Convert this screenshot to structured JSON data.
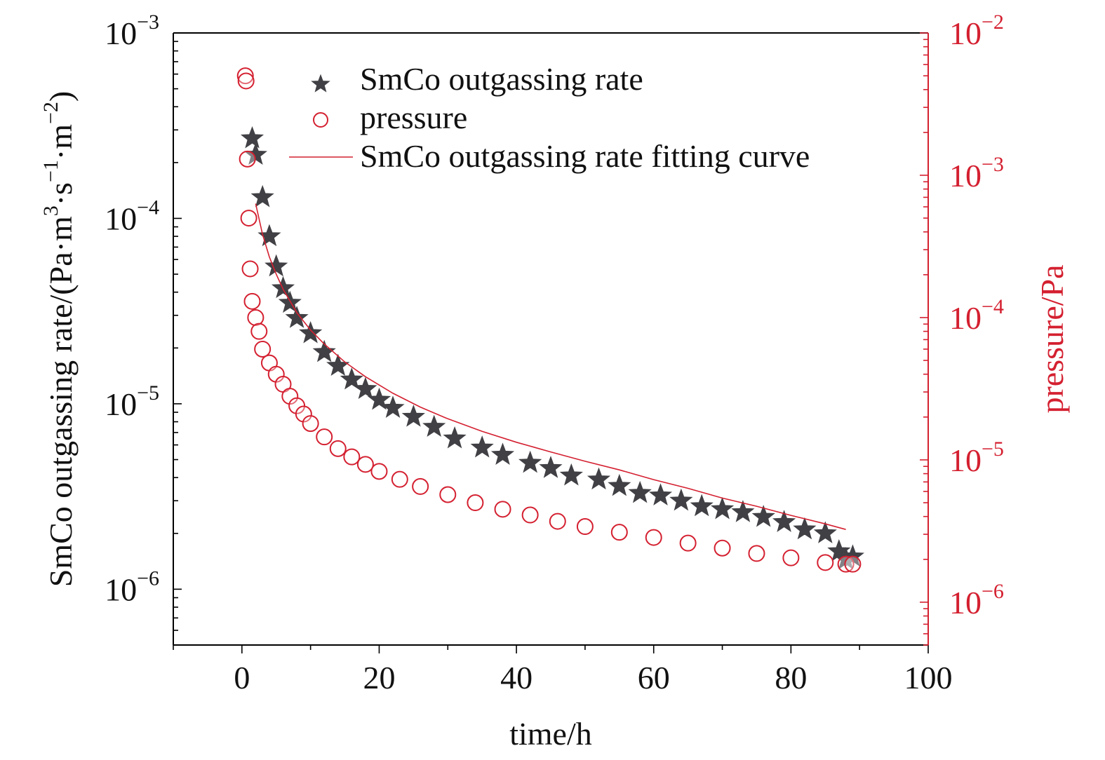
{
  "chart_data": {
    "type": "scatter",
    "xlabel": "time/h",
    "ylabel_left_parts": [
      "SmCo outgassing rate/(Pa·m",
      "3",
      "·s",
      "−1",
      "·m",
      "−2",
      ")"
    ],
    "ylabel_right": "pressure/Pa",
    "x": {
      "lim": [
        -10,
        100
      ],
      "ticks": [
        0,
        20,
        40,
        60,
        80,
        100
      ]
    },
    "y_left": {
      "scale": "log",
      "lim": [
        5e-07,
        0.001
      ],
      "ticks": [
        1e-06,
        1e-05,
        0.0001,
        0.001
      ],
      "tick_labels": [
        "10",
        "10",
        "10",
        "10"
      ],
      "tick_exponents": [
        "−6",
        "−5",
        "−4",
        "−3"
      ]
    },
    "y_right": {
      "scale": "log",
      "lim": [
        5e-07,
        0.01
      ],
      "ticks": [
        1e-06,
        1e-05,
        0.0001,
        0.001,
        0.01
      ],
      "tick_labels": [
        "10",
        "10",
        "10",
        "10",
        "10"
      ],
      "tick_exponents": [
        "−6",
        "−5",
        "−4",
        "−3",
        "−2"
      ]
    },
    "colors": {
      "rate": "#404045",
      "pressure": "#d42030",
      "axis_right": "#d42030",
      "fit": "#d42030",
      "axis": "#000000"
    },
    "legend": {
      "placement": "top",
      "entries": [
        "SmCo outgassing rate",
        "pressure",
        "SmCo outgassing rate fitting curve"
      ]
    },
    "series": [
      {
        "name": "SmCo outgassing rate",
        "axis": "left",
        "marker": "star",
        "x": [
          1.5,
          2,
          3,
          4,
          5,
          6,
          7,
          8,
          10,
          12,
          14,
          16,
          18,
          20,
          22,
          25,
          28,
          31,
          35,
          38,
          42,
          45,
          48,
          52,
          55,
          58,
          61,
          64,
          67,
          70,
          73,
          76,
          79,
          82,
          85,
          87,
          88,
          89
        ],
        "y": [
          0.00027,
          0.00022,
          0.00013,
          8e-05,
          5.5e-05,
          4.2e-05,
          3.5e-05,
          2.9e-05,
          2.4e-05,
          1.9e-05,
          1.6e-05,
          1.35e-05,
          1.2e-05,
          1.05e-05,
          9.5e-06,
          8.5e-06,
          7.5e-06,
          6.5e-06,
          5.8e-06,
          5.3e-06,
          4.8e-06,
          4.5e-06,
          4.1e-06,
          3.9e-06,
          3.6e-06,
          3.3e-06,
          3.2e-06,
          3e-06,
          2.8e-06,
          2.7e-06,
          2.6e-06,
          2.45e-06,
          2.3e-06,
          2.1e-06,
          2e-06,
          1.6e-06,
          1.45e-06,
          1.5e-06
        ]
      },
      {
        "name": "pressure",
        "axis": "right",
        "marker": "circle",
        "x": [
          0.5,
          0.6,
          0.8,
          1,
          1.2,
          1.5,
          2,
          2.5,
          3,
          4,
          5,
          6,
          7,
          8,
          9,
          10,
          12,
          14,
          16,
          18,
          20,
          23,
          26,
          30,
          34,
          38,
          42,
          46,
          50,
          55,
          60,
          65,
          70,
          75,
          80,
          85,
          88,
          89
        ],
        "y": [
          0.005,
          0.0046,
          0.0013,
          0.0005,
          0.00022,
          0.00013,
          0.0001,
          8e-05,
          6e-05,
          4.8e-05,
          4e-05,
          3.4e-05,
          2.8e-05,
          2.4e-05,
          2.1e-05,
          1.8e-05,
          1.45e-05,
          1.2e-05,
          1.05e-05,
          9.3e-06,
          8.3e-06,
          7.3e-06,
          6.5e-06,
          5.7e-06,
          5e-06,
          4.5e-06,
          4.1e-06,
          3.7e-06,
          3.4e-06,
          3.1e-06,
          2.85e-06,
          2.6e-06,
          2.4e-06,
          2.2e-06,
          2.05e-06,
          1.9e-06,
          1.85e-06,
          1.85e-06
        ]
      },
      {
        "name": "SmCo outgassing rate fitting curve",
        "axis": "left",
        "marker": "line",
        "x": [
          2,
          3,
          4,
          5,
          6,
          8,
          10,
          12,
          15,
          18,
          22,
          26,
          30,
          35,
          40,
          45,
          50,
          55,
          60,
          65,
          70,
          75,
          80,
          85,
          88
        ],
        "y": [
          0.00012,
          8.2e-05,
          6.2e-05,
          5e-05,
          4.15e-05,
          3.1e-05,
          2.5e-05,
          2.1e-05,
          1.68e-05,
          1.4e-05,
          1.14e-05,
          9.6e-06,
          8.3e-06,
          7.1e-06,
          6.2e-06,
          5.5e-06,
          4.9e-06,
          4.4e-06,
          3.9e-06,
          3.5e-06,
          3.1e-06,
          2.8e-06,
          2.5e-06,
          2.25e-06,
          2.1e-06
        ]
      }
    ]
  }
}
